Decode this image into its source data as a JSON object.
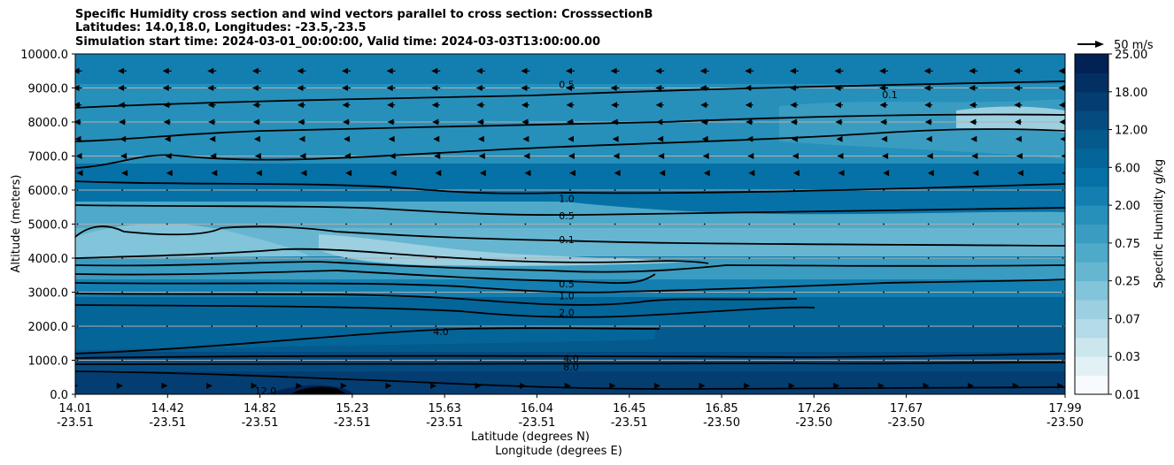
{
  "chart_data": {
    "type": "heatmap",
    "title_lines": [
      "Specific Humidity cross section and wind vectors parallel to cross section: CrosssectionB",
      "Latitudes: 14.0,18.0, Longitudes: -23.5,-23.5",
      "Simulation start time: 2024-03-01_00:00:00, Valid time: 2024-03-03T13:00:00.00"
    ],
    "xlabel_lines": [
      "Latitude (degrees N)",
      "Longitude (degrees E)"
    ],
    "ylabel": "Altitude (meters)",
    "x_ticks": [
      {
        "lat": "14.01",
        "lon": "-23.51"
      },
      {
        "lat": "14.42",
        "lon": "-23.51"
      },
      {
        "lat": "14.82",
        "lon": "-23.51"
      },
      {
        "lat": "15.23",
        "lon": "-23.51"
      },
      {
        "lat": "15.63",
        "lon": "-23.51"
      },
      {
        "lat": "16.04",
        "lon": "-23.51"
      },
      {
        "lat": "16.45",
        "lon": "-23.51"
      },
      {
        "lat": "16.85",
        "lon": "-23.50"
      },
      {
        "lat": "17.26",
        "lon": "-23.50"
      },
      {
        "lat": "17.67",
        "lon": "-23.50"
      },
      {
        "lat": "17.99",
        "lon": "-23.50"
      }
    ],
    "y_ticks": [
      "0.0",
      "1000.0",
      "2000.0",
      "3000.0",
      "4000.0",
      "5000.0",
      "6000.0",
      "7000.0",
      "8000.0",
      "9000.0",
      "10000.0"
    ],
    "ylim": [
      0,
      10000
    ],
    "grid": "horizontal",
    "colorbar": {
      "label": "Specific Humidity g/kg",
      "tick_labels": [
        "0.01",
        "0.03",
        "0.07",
        "0.25",
        "0.75",
        "2.00",
        "6.00",
        "12.00",
        "18.00",
        "25.00"
      ],
      "levels": [
        0.01,
        0.02,
        0.03,
        0.05,
        0.07,
        0.1,
        0.25,
        0.5,
        0.75,
        1.0,
        2.0,
        4.0,
        6.0,
        8.0,
        12.0,
        15.0,
        18.0,
        20.0,
        25.0
      ],
      "colors": [
        "#f7fbfd",
        "#e2f1f6",
        "#cce6ee",
        "#b3dbe8",
        "#9ccfe0",
        "#82c4d9",
        "#67b6d1",
        "#4fa9c8",
        "#3a9cc1",
        "#2690bb",
        "#137fb1",
        "#0571a6",
        "#046599",
        "#055a8d",
        "#054b7f",
        "#043d71",
        "#032f63",
        "#022154"
      ]
    },
    "wind_reference": "50 m/s",
    "contours": [
      {
        "label": "0.5",
        "altitude_m": 9100
      },
      {
        "label": "0.1",
        "altitude_m": 8800
      },
      {
        "label": "1.0",
        "altitude_m": 5750
      },
      {
        "label": "0.5",
        "altitude_m": 5250
      },
      {
        "label": "0.1",
        "altitude_m": 4550
      },
      {
        "label": "0.5",
        "altitude_m": 3250
      },
      {
        "label": "1.0",
        "altitude_m": 2900
      },
      {
        "label": "2.0",
        "altitude_m": 2400
      },
      {
        "label": "4.0",
        "altitude_m": 1850
      },
      {
        "label": "4.0",
        "altitude_m": 1050
      },
      {
        "label": "8.0",
        "altitude_m": 800
      },
      {
        "label": "12.0",
        "altitude_m": 100
      }
    ],
    "wind_rows": [
      {
        "altitude_m": 9500,
        "u": -1.0
      },
      {
        "altitude_m": 9000,
        "u": -1.0
      },
      {
        "altitude_m": 8500,
        "u": -0.9
      },
      {
        "altitude_m": 8000,
        "u": -0.8
      },
      {
        "altitude_m": 7500,
        "u": -0.6
      },
      {
        "altitude_m": 7000,
        "u": -0.4
      },
      {
        "altitude_m": 6500,
        "u": -0.2
      },
      {
        "altitude_m": 6000,
        "u": -0.1
      },
      {
        "altitude_m": 5000,
        "u": -0.05
      },
      {
        "altitude_m": 4000,
        "u": 0.05
      },
      {
        "altitude_m": 3000,
        "u": 0.05
      },
      {
        "altitude_m": 2000,
        "u": 0.05
      },
      {
        "altitude_m": 1000,
        "u": 0.1
      },
      {
        "altitude_m": 250,
        "u": 0.15
      }
    ]
  }
}
